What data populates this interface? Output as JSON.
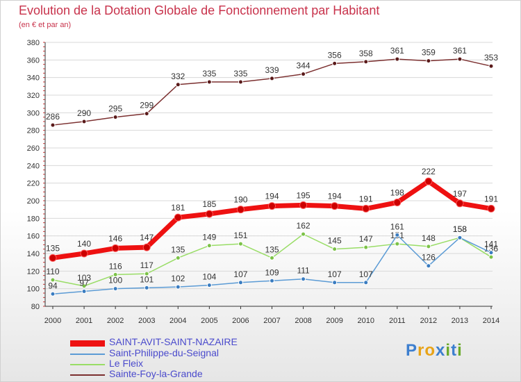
{
  "title": "Evolution de la Dotation Globale de Fonctionnement par Habitant",
  "subtitle": "(en € et par an)",
  "logo": {
    "text": "Proxiti",
    "letters": [
      "P",
      "r",
      "o",
      "x",
      "i",
      "t",
      "i"
    ],
    "colors": [
      "#3d7fcf",
      "#e8a317",
      "#e8a317",
      "#3d7fcf",
      "#6aaa2a",
      "#3d7fcf",
      "#6aaa2a"
    ]
  },
  "colors": {
    "title": "#c8324b",
    "grid": "#d8d8d8",
    "axis": "#333333",
    "legend_text": "#4a4acc"
  },
  "chart_data": {
    "type": "line",
    "title": "Evolution de la Dotation Globale de Fonctionnement par Habitant",
    "ylabel": "(en € et par an)",
    "xlabel": "",
    "x": [
      "2000",
      "2001",
      "2002",
      "2003",
      "2004",
      "2005",
      "2006",
      "2007",
      "2008",
      "2009",
      "2010",
      "2011",
      "2012",
      "2013",
      "2014"
    ],
    "ylim": [
      80,
      380
    ],
    "yticks": [
      80,
      100,
      120,
      140,
      160,
      180,
      200,
      220,
      240,
      260,
      280,
      300,
      320,
      340,
      360,
      380
    ],
    "grid": true,
    "series": [
      {
        "name": "Sainte-Foy-la-Grande",
        "color": "#7b2f2f",
        "marker": "#5a1a1a",
        "width": 1.5,
        "values": [
          286,
          290,
          295,
          299,
          332,
          335,
          335,
          339,
          344,
          356,
          358,
          361,
          359,
          361,
          353
        ],
        "labels": [
          "286",
          "290",
          "295",
          "299",
          "332",
          "335",
          "335",
          "339",
          "344",
          "356",
          "358",
          "361",
          "359",
          "361",
          "353"
        ]
      },
      {
        "name": "Le Fleix",
        "color": "#99dd66",
        "marker": "#7cc248",
        "width": 1.5,
        "values": [
          110,
          103,
          116,
          117,
          135,
          149,
          151,
          135,
          162,
          145,
          147,
          151,
          148,
          158,
          136
        ],
        "labels": [
          "110",
          "103",
          "116",
          "117",
          "135",
          "149",
          "151",
          "135",
          "162",
          "145",
          "147",
          "151",
          "148",
          "158",
          "136"
        ]
      },
      {
        "name": "Saint-Philippe-du-Seignal",
        "color": "#5b9bd5",
        "marker": "#3a7cc0",
        "width": 1.5,
        "values": [
          94,
          97,
          100,
          101,
          102,
          104,
          107,
          109,
          111,
          107,
          107,
          161,
          126,
          158,
          141
        ],
        "labels": [
          "94",
          "97",
          "100",
          "101",
          "102",
          "104",
          "107",
          "109",
          "111",
          "107",
          "107",
          "161",
          "126",
          "158",
          "141"
        ]
      },
      {
        "name": "SAINT-AVIT-SAINT-NAZAIRE",
        "color": "#ee1111",
        "marker": "#cc0000",
        "width": 7,
        "values": [
          135,
          140,
          146,
          147,
          181,
          185,
          190,
          194,
          195,
          194,
          191,
          198,
          222,
          197,
          191
        ],
        "labels": [
          "135",
          "140",
          "146",
          "147",
          "181",
          "185",
          "190",
          "194",
          "195",
          "194",
          "191",
          "198",
          "222",
          "197",
          "191"
        ]
      }
    ],
    "legend": [
      "SAINT-AVIT-SAINT-NAZAIRE",
      "Saint-Philippe-du-Seignal",
      "Le Fleix",
      "Sainte-Foy-la-Grande"
    ]
  }
}
